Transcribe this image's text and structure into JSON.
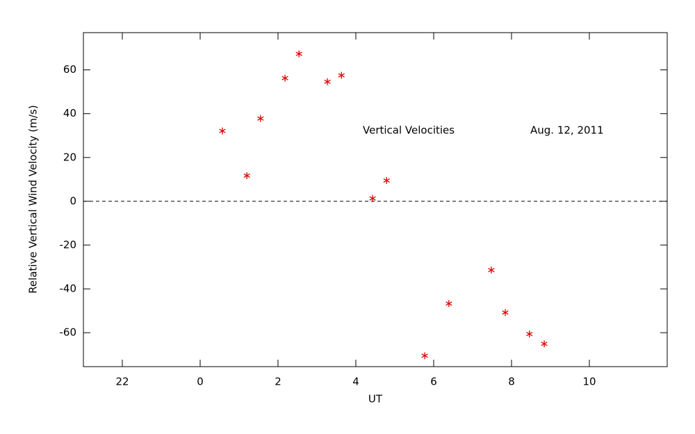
{
  "chart_data": {
    "type": "scatter",
    "xlabel": "UT",
    "ylabel": "Relative Vertical Wind Velocity (m/s)",
    "annotations": [
      "Vertical Velocities",
      "Aug. 12, 2011"
    ],
    "series": [
      {
        "name": "Vertical Velocities",
        "color": "#e00000",
        "x": [
          0.57,
          1.2,
          1.55,
          2.18,
          2.54,
          3.27,
          3.63,
          4.43,
          4.79,
          5.77,
          6.39,
          7.48,
          7.84,
          8.46,
          8.84
        ],
        "values": [
          32.1,
          11.7,
          37.8,
          56.2,
          67.3,
          54.6,
          57.5,
          1.3,
          9.5,
          -70.5,
          -46.7,
          -31.4,
          -50.8,
          -60.6,
          -65.1
        ]
      }
    ],
    "xlim": [
      -3,
      12
    ],
    "xticks": [
      {
        "value": -2,
        "label": "22"
      },
      0,
      2,
      4,
      6,
      8,
      10
    ],
    "ylim": [
      -75.5,
      77
    ],
    "yticks": [
      -60,
      -40,
      -20,
      0,
      20,
      40,
      60
    ],
    "hline": 0,
    "grid": false
  }
}
